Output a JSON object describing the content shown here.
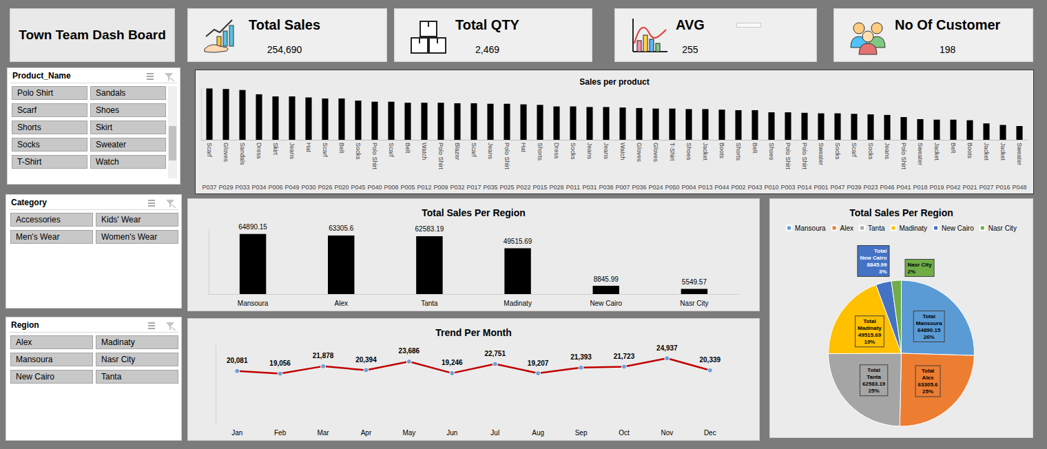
{
  "header": {
    "title": "Town Team Dash Board"
  },
  "kpis": [
    {
      "title": "Total Sales",
      "value": "254,690"
    },
    {
      "title": "Total QTY",
      "value": "2,469"
    },
    {
      "title": "AVG",
      "value": "255"
    },
    {
      "title": "No Of Customer",
      "value": "198"
    }
  ],
  "slicers": [
    {
      "title": "Product_Name",
      "items": [
        "Polo Shirt",
        "Sandals",
        "Scarf",
        "Shoes",
        "Shorts",
        "Skirt",
        "Socks",
        "Sweater",
        "T-Shirt",
        "Watch"
      ]
    },
    {
      "title": "Category",
      "items": [
        "Accessories",
        "Kids' Wear",
        "Men's Wear",
        "Women's Wear"
      ]
    },
    {
      "title": "Region",
      "items": [
        "Alex",
        "Madinaty",
        "Mansoura",
        "Nasr City",
        "New Cairo",
        "Tanta"
      ]
    }
  ],
  "chart_data": [
    {
      "type": "bar",
      "title": "Sales per product",
      "categories": [
        "P037",
        "P029",
        "P033",
        "P034",
        "P006",
        "P049",
        "P030",
        "P026",
        "P020",
        "P045",
        "P040",
        "P008",
        "P005",
        "P012",
        "P009",
        "P032",
        "P017",
        "P035",
        "P025",
        "P022",
        "P015",
        "P028",
        "P011",
        "P031",
        "P038",
        "P007",
        "P036",
        "P024",
        "P050",
        "P004",
        "P013",
        "P044",
        "P002",
        "P043",
        "P010",
        "P003",
        "P014",
        "P001",
        "P047",
        "P039",
        "P023",
        "P046",
        "P041",
        "P018",
        "P019",
        "P042",
        "P021",
        "P027",
        "P016",
        "P048"
      ],
      "product_names": [
        "Scarf",
        "Gloves",
        "Sandals",
        "Dress",
        "Skirt",
        "Jeans",
        "Hat",
        "Scarf",
        "Belt",
        "Socks",
        "Polo Shirt",
        "Scarf",
        "Belt",
        "Watch",
        "Polo Shirt",
        "Blazer",
        "Scarf",
        "Jeans",
        "Polo Shirt",
        "Hat",
        "Shorts",
        "Dress",
        "Socks",
        "Jeans",
        "Jeans",
        "Watch",
        "Gloves",
        "Gloves",
        "T-Shirt",
        "Shoes",
        "Jacket",
        "Boots",
        "Shorts",
        "Belt",
        "Shoes",
        "Polo Shirt",
        "Polo Shirt",
        "Sweater",
        "Socks",
        "Scarf",
        "Socks",
        "Jeans",
        "Polo Shirt",
        "Sweater",
        "Jacket",
        "Belt",
        "Boots",
        "Jacket",
        "Jacket",
        "Sweater"
      ],
      "values": [
        7950,
        7870,
        7710,
        7050,
        6720,
        6720,
        6560,
        6400,
        6400,
        6070,
        5900,
        5900,
        5740,
        5740,
        5740,
        5660,
        5660,
        5580,
        5580,
        5490,
        5410,
        5170,
        5170,
        5080,
        5080,
        5000,
        4920,
        4840,
        4840,
        4760,
        4760,
        4670,
        4590,
        4590,
        4260,
        4260,
        4180,
        4100,
        4100,
        4020,
        3940,
        3850,
        3530,
        3200,
        3120,
        3120,
        3030,
        2540,
        2300,
        2130
      ],
      "color": "#000000",
      "ylim": [
        0,
        8000
      ],
      "grid": false,
      "tick_labels": "x",
      "data_labels": false
    },
    {
      "type": "bar",
      "title": "Total Sales Per Region",
      "categories": [
        "Mansoura",
        "Alex",
        "Tanta",
        "Madinaty",
        "New Cairo",
        "Nasr City"
      ],
      "values": [
        64890.15,
        63305.6,
        62583.19,
        49515.69,
        8845.99,
        5549.57
      ],
      "color": "#000000",
      "ylim": [
        0,
        70000
      ],
      "grid": false,
      "tick_labels": "x",
      "data_labels": true
    },
    {
      "type": "line",
      "title": "Trend Per Month",
      "categories": [
        "Jan",
        "Feb",
        "Mar",
        "Apr",
        "May",
        "Jun",
        "Jul",
        "Aug",
        "Sep",
        "Oct",
        "Nov",
        "Dec"
      ],
      "values": [
        20081,
        19056,
        21878,
        20394,
        23686,
        19246,
        22751,
        19207,
        21393,
        21723,
        24937,
        20339
      ],
      "value_labels": [
        "20,081",
        "19,056",
        "21,878",
        "20,394",
        "23,686",
        "19,246",
        "22,751",
        "19,207",
        "21,393",
        "21,723",
        "24,937",
        "20,339"
      ],
      "color": "#c00000",
      "marker": "circle",
      "ylim": [
        0,
        30000
      ],
      "grid": false,
      "tick_labels": "x",
      "data_labels": true
    },
    {
      "type": "pie",
      "title": "Total Sales Per Region",
      "categories": [
        "Mansoura",
        "Alex",
        "Tanta",
        "Madinaty",
        "New Cairo",
        "Nasr City"
      ],
      "values": [
        64890.15,
        63305.6,
        62583.19,
        49515.69,
        8845.99,
        5549.57
      ],
      "value_labels": [
        "Total\nMansoura\n64890.15\n26%",
        "Total\nAlex\n63305.6\n25%",
        "Total\nTanta\n62583.19\n25%",
        "Total\nMadinaty\n49515.69\n19%",
        "Total\nNew Cairo\n8845.99\n3%",
        "Nasr City\n2%"
      ],
      "colors": [
        "#5b9bd5",
        "#ed7d31",
        "#a5a5a5",
        "#ffc000",
        "#4472c4",
        "#70ad47"
      ],
      "legend": "top",
      "data_labels": true
    }
  ]
}
